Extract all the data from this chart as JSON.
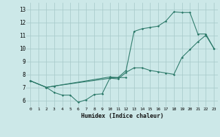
{
  "xlabel": "Humidex (Indice chaleur)",
  "bg_color": "#cce8e8",
  "grid_color": "#aacccc",
  "line_color": "#2d7a6a",
  "xlim": [
    -0.5,
    23.5
  ],
  "ylim": [
    5.5,
    13.5
  ],
  "xticks": [
    0,
    1,
    2,
    3,
    4,
    5,
    6,
    7,
    8,
    9,
    10,
    11,
    12,
    13,
    14,
    15,
    16,
    17,
    18,
    19,
    20,
    21,
    22,
    23
  ],
  "yticks": [
    6,
    7,
    8,
    9,
    10,
    11,
    12,
    13
  ],
  "curve1_x": [
    0,
    2,
    3,
    10,
    11,
    12,
    13,
    14,
    15,
    16,
    17,
    18,
    19,
    20,
    21,
    22,
    23
  ],
  "curve1_y": [
    7.5,
    7.0,
    7.1,
    7.8,
    7.75,
    8.3,
    11.3,
    11.5,
    11.6,
    11.7,
    12.1,
    12.8,
    12.75,
    12.75,
    11.1,
    11.1,
    10.0
  ],
  "curve2_x": [
    0,
    2,
    3,
    10,
    11,
    12,
    13,
    14,
    15,
    16,
    17,
    18,
    19,
    20,
    21,
    22,
    23
  ],
  "curve2_y": [
    7.5,
    7.0,
    7.1,
    7.7,
    7.65,
    8.15,
    8.5,
    8.5,
    8.3,
    8.2,
    8.1,
    8.0,
    9.3,
    9.9,
    10.5,
    11.0,
    10.0
  ],
  "curve3_x": [
    0,
    2,
    3,
    4,
    5,
    6,
    7,
    8,
    9,
    10,
    11,
    12
  ],
  "curve3_y": [
    7.5,
    7.0,
    6.6,
    6.4,
    6.4,
    5.85,
    6.05,
    6.45,
    6.5,
    7.75,
    7.75,
    7.75
  ]
}
